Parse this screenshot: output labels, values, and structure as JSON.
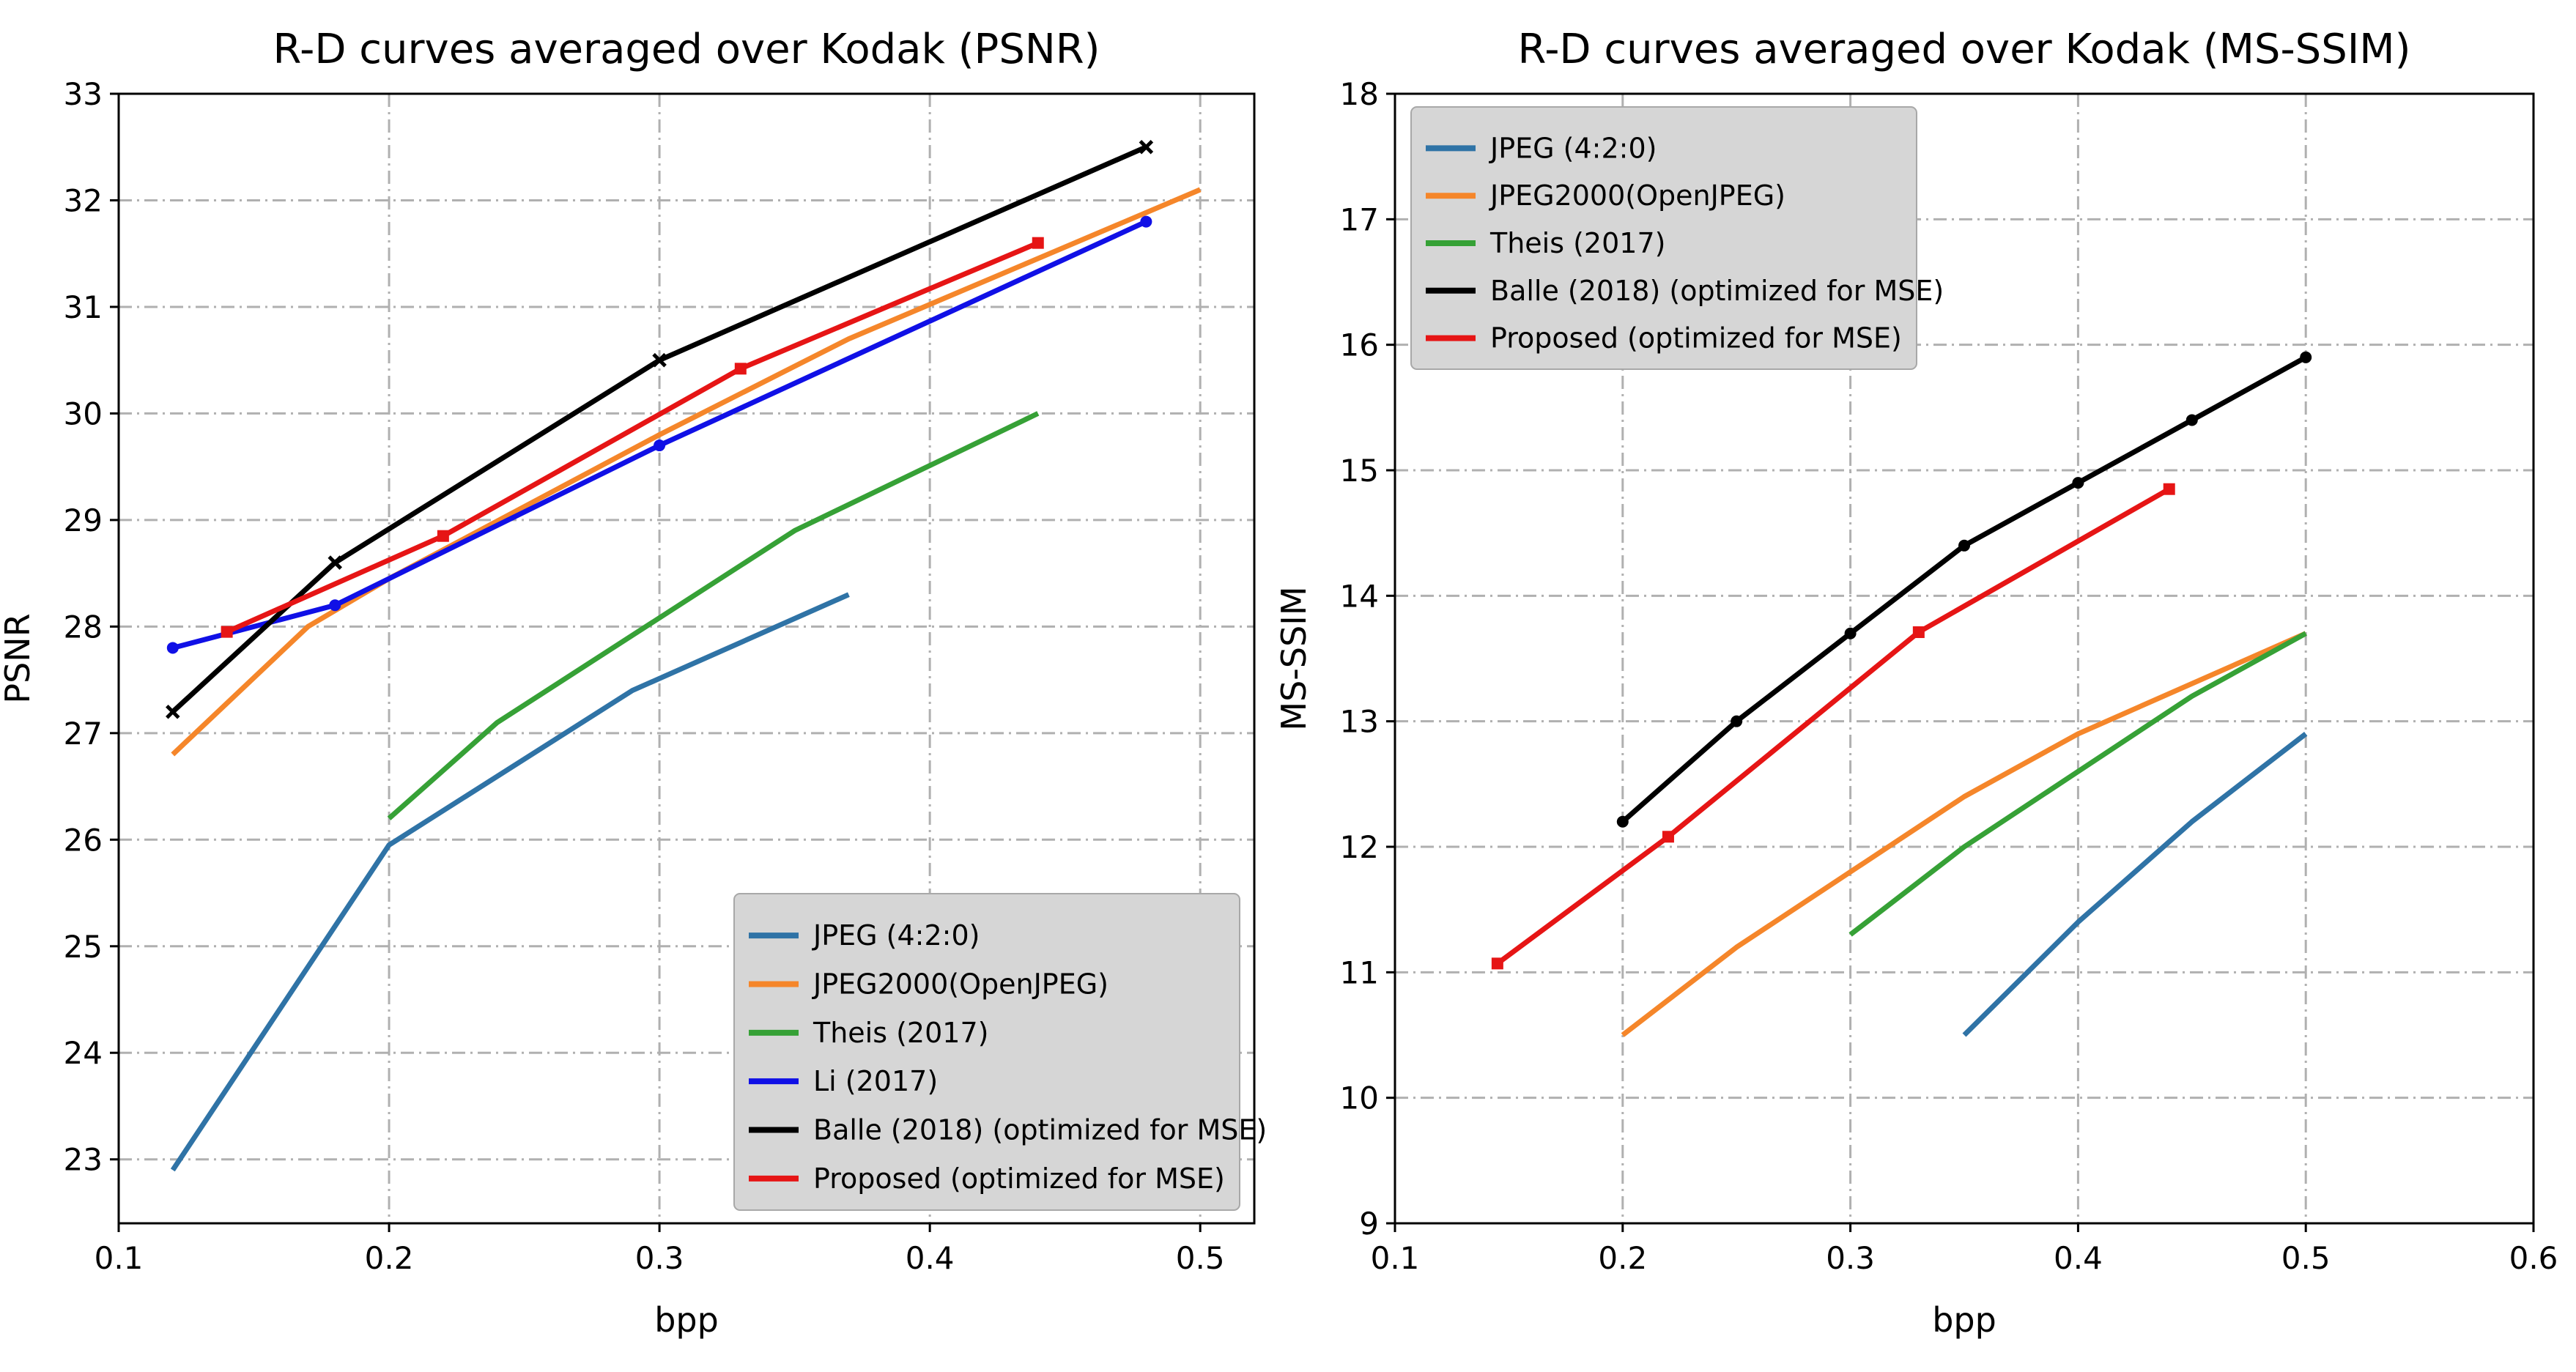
{
  "chart_data": [
    {
      "type": "line",
      "title": "R-D curves averaged over Kodak (PSNR)",
      "xlabel": "bpp",
      "ylabel": "PSNR",
      "xlim": [
        0.1,
        0.52
      ],
      "ylim": [
        22.4,
        33.0
      ],
      "xticks": [
        0.1,
        0.2,
        0.3,
        0.4,
        0.5
      ],
      "xtick_labels": [
        "0.1",
        "0.2",
        "0.3",
        "0.4",
        "0.5"
      ],
      "yticks": [
        23,
        24,
        25,
        26,
        27,
        28,
        29,
        30,
        31,
        32,
        33
      ],
      "ytick_labels": [
        "23",
        "24",
        "25",
        "26",
        "27",
        "28",
        "29",
        "30",
        "31",
        "32",
        "33"
      ],
      "grid": true,
      "legend_position": "bottom-right",
      "series": [
        {
          "name": "JPEG (4:2:0)",
          "color": "#2f73a6",
          "marker": "none",
          "x": [
            0.12,
            0.2,
            0.29,
            0.37
          ],
          "y": [
            22.9,
            25.95,
            27.4,
            28.3
          ]
        },
        {
          "name": "JPEG2000(OpenJPEG)",
          "color": "#f5862a",
          "marker": "none",
          "x": [
            0.12,
            0.17,
            0.2,
            0.3,
            0.37,
            0.5
          ],
          "y": [
            26.8,
            28.0,
            28.45,
            29.8,
            30.7,
            32.1
          ]
        },
        {
          "name": "Theis (2017)",
          "color": "#36a136",
          "marker": "none",
          "x": [
            0.2,
            0.24,
            0.35,
            0.44
          ],
          "y": [
            26.2,
            27.1,
            28.9,
            30.0
          ]
        },
        {
          "name": "Li (2017)",
          "color": "#1010e6",
          "marker": "dot",
          "x": [
            0.12,
            0.18,
            0.3,
            0.48
          ],
          "y": [
            27.8,
            28.2,
            29.7,
            31.8
          ]
        },
        {
          "name": "Balle (2018) (optimized for MSE)",
          "color": "#000000",
          "marker": "x",
          "x": [
            0.12,
            0.18,
            0.3,
            0.48
          ],
          "y": [
            27.2,
            28.6,
            30.5,
            32.5
          ]
        },
        {
          "name": "Proposed (optimized for MSE)",
          "color": "#e61515",
          "marker": "square",
          "x": [
            0.14,
            0.22,
            0.33,
            0.44
          ],
          "y": [
            27.95,
            28.85,
            30.42,
            31.6
          ]
        }
      ]
    },
    {
      "type": "line",
      "title": "R-D curves averaged over Kodak (MS-SSIM)",
      "xlabel": "bpp",
      "ylabel": "MS-SSIM",
      "xlim": [
        0.1,
        0.6
      ],
      "ylim": [
        9,
        18
      ],
      "xticks": [
        0.1,
        0.2,
        0.3,
        0.4,
        0.5,
        0.6
      ],
      "xtick_labels": [
        "0.1",
        "0.2",
        "0.3",
        "0.4",
        "0.5",
        "0.6"
      ],
      "yticks": [
        9,
        10,
        11,
        12,
        13,
        14,
        15,
        16,
        17,
        18
      ],
      "ytick_labels": [
        "9",
        "10",
        "11",
        "12",
        "13",
        "14",
        "15",
        "16",
        "17",
        "18"
      ],
      "grid": true,
      "legend_position": "top-left",
      "series": [
        {
          "name": "JPEG (4:2:0)",
          "color": "#2f73a6",
          "marker": "none",
          "x": [
            0.35,
            0.4,
            0.45,
            0.5
          ],
          "y": [
            10.5,
            11.4,
            12.2,
            12.9
          ]
        },
        {
          "name": "JPEG2000(OpenJPEG)",
          "color": "#f5862a",
          "marker": "none",
          "x": [
            0.2,
            0.25,
            0.35,
            0.4,
            0.5
          ],
          "y": [
            10.5,
            11.2,
            12.4,
            12.9,
            13.7
          ]
        },
        {
          "name": "Theis (2017)",
          "color": "#36a136",
          "marker": "none",
          "x": [
            0.3,
            0.35,
            0.4,
            0.45,
            0.5
          ],
          "y": [
            11.3,
            12.0,
            12.6,
            13.2,
            13.7
          ]
        },
        {
          "name": "Balle (2018) (optimized for MSE)",
          "color": "#000000",
          "marker": "dot",
          "x": [
            0.2,
            0.25,
            0.3,
            0.35,
            0.4,
            0.45,
            0.5
          ],
          "y": [
            12.2,
            13.0,
            13.7,
            14.4,
            14.9,
            15.4,
            15.9
          ]
        },
        {
          "name": "Proposed (optimized for MSE)",
          "color": "#e61515",
          "marker": "square",
          "x": [
            0.145,
            0.22,
            0.33,
            0.44
          ],
          "y": [
            11.07,
            12.08,
            13.71,
            14.85
          ]
        }
      ]
    }
  ]
}
